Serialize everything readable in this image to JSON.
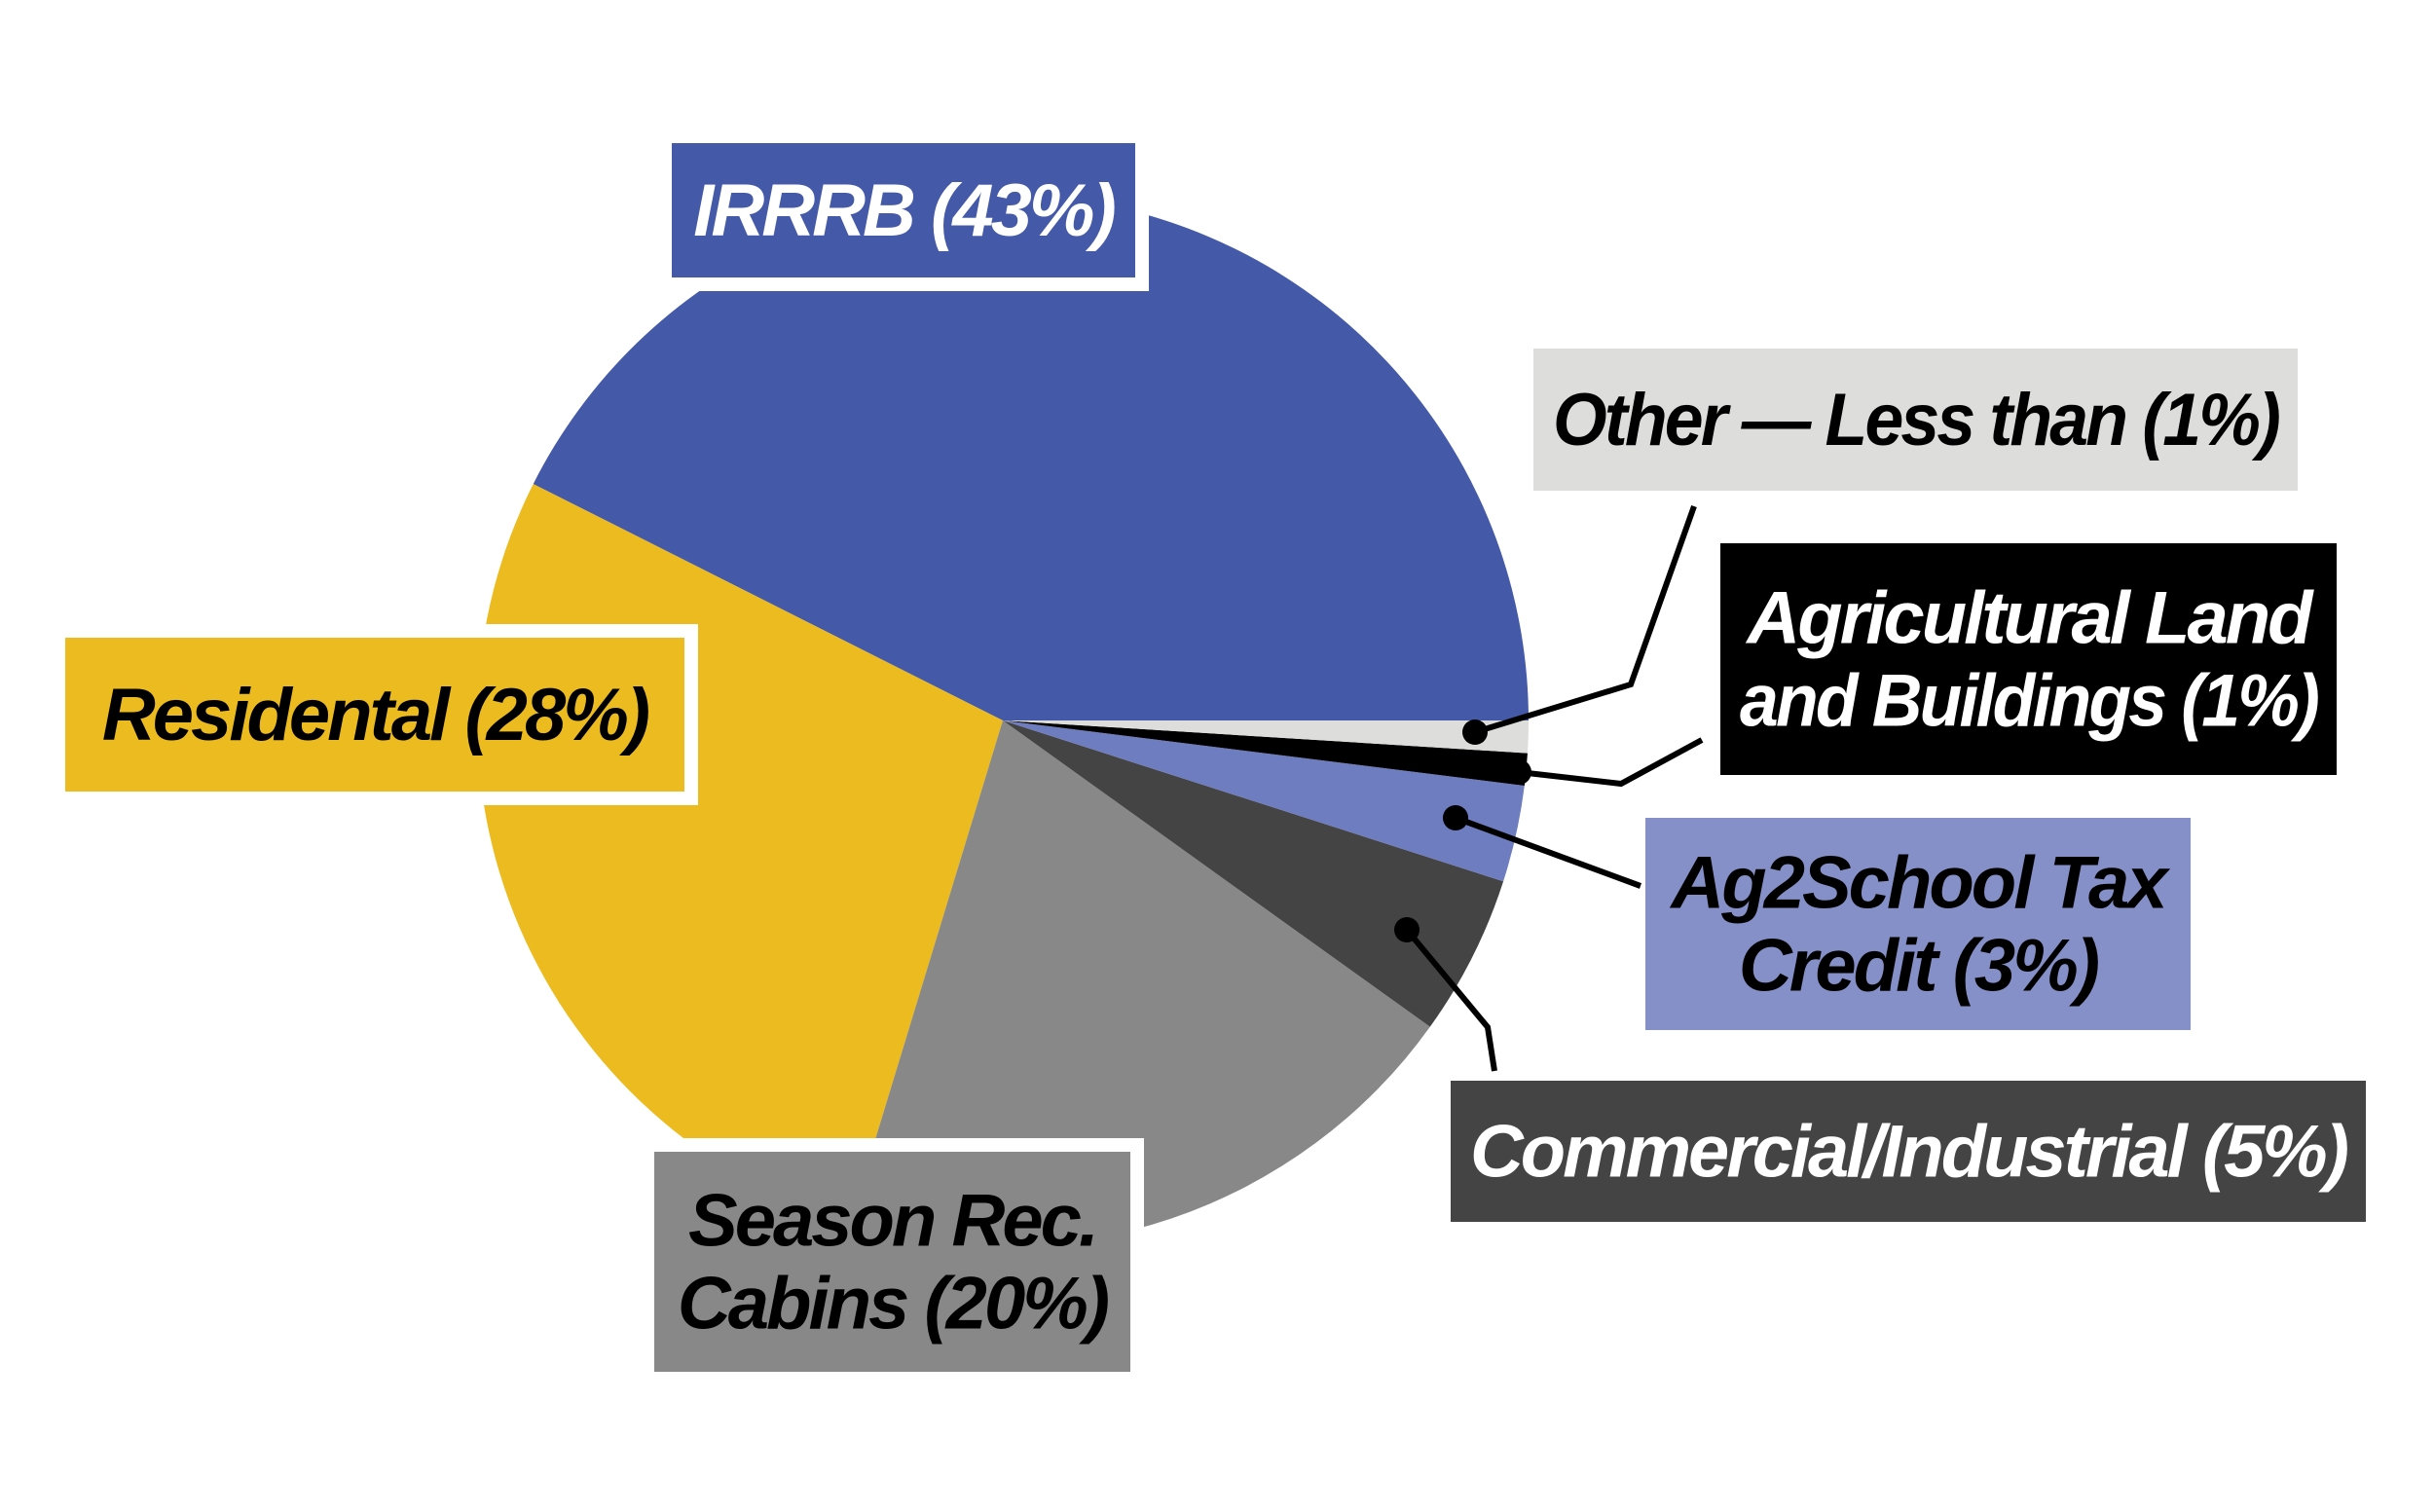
{
  "chart_data": {
    "type": "pie",
    "title": "",
    "slices": [
      {
        "label": "IRRRB",
        "value": 43,
        "display": [
          "IRRRB (43%)"
        ],
        "color": "#4459A8",
        "text_color": "#ffffff"
      },
      {
        "label": "Residental",
        "value": 28,
        "display": [
          "Residental (28%)"
        ],
        "color": "#EBBB1F",
        "text_color": "#000000"
      },
      {
        "label": "Season Rec. Cabins",
        "value": 20,
        "display": [
          "Season Rec.",
          "Cabins (20%)"
        ],
        "color": "#888888",
        "text_color": "#000000"
      },
      {
        "label": "Commercial/Industrial",
        "value": 5,
        "display": [
          "Commercial/Industrial (5%)"
        ],
        "color": "#444444",
        "text_color": "#ffffff"
      },
      {
        "label": "Ag2School Tax Credit",
        "value": 3,
        "display": [
          "Ag2School Tax",
          "Credit (3%)"
        ],
        "color": "#6E7CC0",
        "label_bg": "#8690C8",
        "text_color": "#000000"
      },
      {
        "label": "Agricultural Land and Buildings",
        "value": 1,
        "display": [
          "Agricultural Land",
          "and Buildings (1%)"
        ],
        "color": "#000000",
        "text_color": "#ffffff"
      },
      {
        "label": "Other",
        "value": 1,
        "display": [
          "Other — Less than (1%)"
        ],
        "color": "#DDDDDB",
        "text_color": "#000000"
      }
    ]
  }
}
